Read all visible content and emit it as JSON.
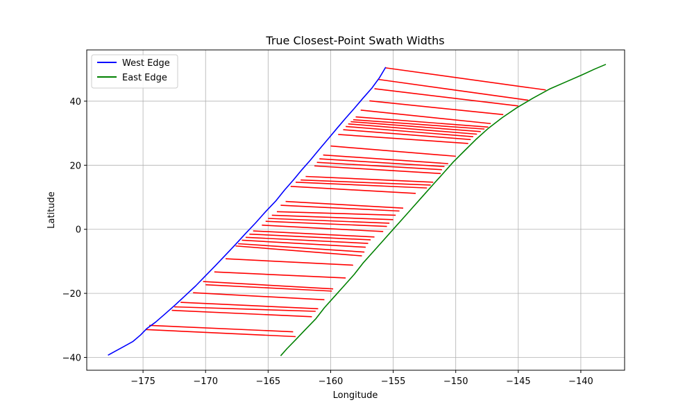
{
  "chart_data": {
    "type": "line",
    "title": "True Closest-Point Swath Widths",
    "xlabel": "Longitude",
    "ylabel": "Latitude",
    "xlim": [
      -179.5,
      -136.5
    ],
    "ylim": [
      -44,
      56
    ],
    "xticks": [
      -175,
      -170,
      -165,
      -160,
      -155,
      -150,
      -145,
      -140
    ],
    "yticks": [
      -40,
      -20,
      0,
      20,
      40
    ],
    "xtick_labels": [
      "−175",
      "−170",
      "−165",
      "−160",
      "−155",
      "−150",
      "−145",
      "−140"
    ],
    "ytick_labels": [
      "−40",
      "−20",
      "0",
      "20",
      "40"
    ],
    "grid": true,
    "legend_position": "top-left",
    "series": [
      {
        "name": "West Edge",
        "color": "#0000ff",
        "x": [
          -177.8,
          -177.2,
          -176.5,
          -175.8,
          -175.2,
          -174.7,
          -174.0,
          -173.2,
          -172.4,
          -171.6,
          -170.8,
          -170.0,
          -169.2,
          -168.4,
          -167.6,
          -166.8,
          -166.0,
          -165.2,
          -164.4,
          -163.7,
          -163.0,
          -162.3,
          -161.6,
          -160.9,
          -160.2,
          -159.5,
          -158.8,
          -158.1,
          -157.4,
          -156.7,
          -156.1,
          -155.6
        ],
        "y": [
          -39.3,
          -38.0,
          -36.5,
          -35.0,
          -33.0,
          -31.0,
          -29.0,
          -26.3,
          -23.5,
          -20.6,
          -17.7,
          -14.5,
          -11.3,
          -8.0,
          -4.7,
          -1.3,
          2.0,
          5.5,
          8.8,
          12.2,
          15.3,
          18.6,
          21.7,
          25.0,
          28.2,
          31.5,
          34.7,
          37.8,
          41.0,
          44.1,
          47.3,
          50.6
        ]
      },
      {
        "name": "East Edge",
        "color": "#008000",
        "x": [
          -164.0,
          -163.5,
          -162.8,
          -162.0,
          -161.2,
          -160.5,
          -159.7,
          -158.9,
          -158.1,
          -157.4,
          -156.6,
          -155.8,
          -155.0,
          -154.2,
          -153.4,
          -152.6,
          -151.8,
          -151.0,
          -150.2,
          -149.3,
          -148.4,
          -147.4,
          -146.3,
          -145.1,
          -143.8,
          -142.5,
          -141.2,
          -139.9,
          -138.9,
          -138.0
        ],
        "y": [
          -39.5,
          -37.3,
          -34.5,
          -31.2,
          -28.0,
          -24.5,
          -21.0,
          -17.5,
          -14.0,
          -10.5,
          -7.0,
          -3.5,
          0.0,
          3.5,
          7.0,
          10.5,
          14.0,
          17.5,
          21.0,
          24.5,
          28.0,
          31.5,
          34.8,
          38.0,
          41.0,
          43.8,
          46.0,
          48.2,
          50.0,
          51.5
        ]
      }
    ],
    "swath_color": "#ff0000",
    "swaths": [
      {
        "x1": -174.5,
        "y1": -30.0,
        "x2": -163.0,
        "y2": -32.0
      },
      {
        "x1": -174.8,
        "y1": -31.3,
        "x2": -162.8,
        "y2": -33.5
      },
      {
        "x1": -172.0,
        "y1": -22.8,
        "x2": -161.0,
        "y2": -24.8
      },
      {
        "x1": -172.5,
        "y1": -24.2,
        "x2": -161.2,
        "y2": -25.6
      },
      {
        "x1": -172.7,
        "y1": -25.3,
        "x2": -161.5,
        "y2": -27.3
      },
      {
        "x1": -171.0,
        "y1": -19.8,
        "x2": -160.5,
        "y2": -22.0
      },
      {
        "x1": -170.2,
        "y1": -16.3,
        "x2": -159.8,
        "y2": -18.6
      },
      {
        "x1": -170.0,
        "y1": -17.3,
        "x2": -159.9,
        "y2": -19.3
      },
      {
        "x1": -169.3,
        "y1": -13.3,
        "x2": -158.8,
        "y2": -15.2
      },
      {
        "x1": -168.4,
        "y1": -9.2,
        "x2": -158.2,
        "y2": -11.2
      },
      {
        "x1": -167.6,
        "y1": -5.2,
        "x2": -157.5,
        "y2": -8.3
      },
      {
        "x1": -167.4,
        "y1": -4.5,
        "x2": -157.3,
        "y2": -7.1
      },
      {
        "x1": -167.1,
        "y1": -3.4,
        "x2": -157.2,
        "y2": -5.6
      },
      {
        "x1": -166.8,
        "y1": -2.5,
        "x2": -157.0,
        "y2": -4.4
      },
      {
        "x1": -166.5,
        "y1": -1.5,
        "x2": -156.8,
        "y2": -3.3
      },
      {
        "x1": -166.2,
        "y1": -0.5,
        "x2": -156.5,
        "y2": -2.4
      },
      {
        "x1": -165.5,
        "y1": 1.3,
        "x2": -155.8,
        "y2": -0.7
      },
      {
        "x1": -165.2,
        "y1": 2.5,
        "x2": -155.5,
        "y2": 0.9
      },
      {
        "x1": -165.0,
        "y1": 3.4,
        "x2": -155.3,
        "y2": 1.9
      },
      {
        "x1": -164.7,
        "y1": 4.4,
        "x2": -155.0,
        "y2": 3.0
      },
      {
        "x1": -164.3,
        "y1": 5.5,
        "x2": -154.8,
        "y2": 4.4
      },
      {
        "x1": -164.0,
        "y1": 7.5,
        "x2": -154.5,
        "y2": 5.7
      },
      {
        "x1": -163.6,
        "y1": 8.7,
        "x2": -154.2,
        "y2": 6.6
      },
      {
        "x1": -163.2,
        "y1": 13.4,
        "x2": -153.2,
        "y2": 11.2
      },
      {
        "x1": -162.8,
        "y1": 14.7,
        "x2": -152.3,
        "y2": 12.9
      },
      {
        "x1": -162.4,
        "y1": 15.4,
        "x2": -152.0,
        "y2": 13.8
      },
      {
        "x1": -162.0,
        "y1": 16.5,
        "x2": -151.8,
        "y2": 14.7
      },
      {
        "x1": -161.3,
        "y1": 19.8,
        "x2": -151.2,
        "y2": 17.4
      },
      {
        "x1": -161.1,
        "y1": 20.9,
        "x2": -151.1,
        "y2": 18.6
      },
      {
        "x1": -160.9,
        "y1": 22.0,
        "x2": -150.9,
        "y2": 19.6
      },
      {
        "x1": -160.6,
        "y1": 23.2,
        "x2": -150.6,
        "y2": 20.5
      },
      {
        "x1": -160.0,
        "y1": 26.0,
        "x2": -150.0,
        "y2": 22.8
      },
      {
        "x1": -159.4,
        "y1": 29.6,
        "x2": -149.0,
        "y2": 26.8
      },
      {
        "x1": -159.0,
        "y1": 31.1,
        "x2": -148.8,
        "y2": 28.0
      },
      {
        "x1": -158.8,
        "y1": 32.1,
        "x2": -148.6,
        "y2": 28.9
      },
      {
        "x1": -158.6,
        "y1": 32.9,
        "x2": -148.3,
        "y2": 29.7
      },
      {
        "x1": -158.4,
        "y1": 33.6,
        "x2": -148.0,
        "y2": 30.5
      },
      {
        "x1": -158.2,
        "y1": 34.2,
        "x2": -147.7,
        "y2": 31.3
      },
      {
        "x1": -158.0,
        "y1": 35.1,
        "x2": -147.4,
        "y2": 31.9
      },
      {
        "x1": -157.6,
        "y1": 37.2,
        "x2": -147.2,
        "y2": 33.0
      },
      {
        "x1": -156.9,
        "y1": 40.1,
        "x2": -146.2,
        "y2": 35.8
      },
      {
        "x1": -156.5,
        "y1": 43.9,
        "x2": -145.0,
        "y2": 38.5
      },
      {
        "x1": -156.2,
        "y1": 46.8,
        "x2": -144.2,
        "y2": 40.3
      },
      {
        "x1": -155.6,
        "y1": 50.4,
        "x2": -142.8,
        "y2": 43.5
      }
    ]
  }
}
